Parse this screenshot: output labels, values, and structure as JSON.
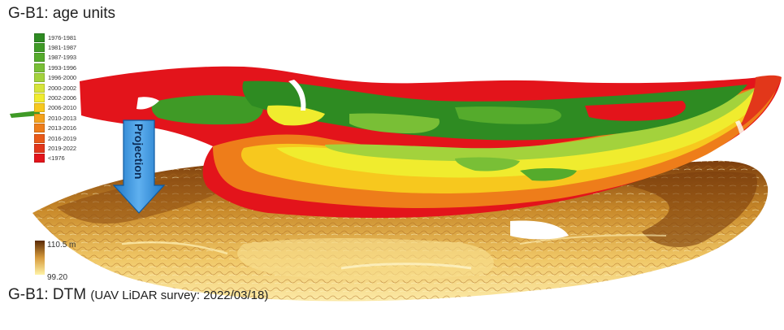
{
  "title_top": "G-B1: age units",
  "title_bottom_main": "G-B1: DTM",
  "title_bottom_sub": "(UAV LiDAR survey: 2022/03/18)",
  "projection_label": "Projection",
  "legend": [
    {
      "label": "1976-1981",
      "color": "#2e8b22"
    },
    {
      "label": "1981-1987",
      "color": "#3f9a26"
    },
    {
      "label": "1987-1993",
      "color": "#55ab2c"
    },
    {
      "label": "1993-1996",
      "color": "#79bf36"
    },
    {
      "label": "1996-2000",
      "color": "#a3d23c"
    },
    {
      "label": "2000-2002",
      "color": "#d6e43a"
    },
    {
      "label": "2002-2006",
      "color": "#f0ec2e"
    },
    {
      "label": "2006-2010",
      "color": "#f7c81e"
    },
    {
      "label": "2010-2013",
      "color": "#f4a21c"
    },
    {
      "label": "2013-2016",
      "color": "#ee7d1a"
    },
    {
      "label": "2016-2019",
      "color": "#e95a18"
    },
    {
      "label": "2019-2022",
      "color": "#e2371a"
    },
    {
      "label": "<1976",
      "color": "#e3141b"
    }
  ],
  "elevation": {
    "max_label": "110.5 m",
    "min_label": "99.20",
    "color_high": "#5a2a06",
    "color_low": "#fff2a6"
  }
}
